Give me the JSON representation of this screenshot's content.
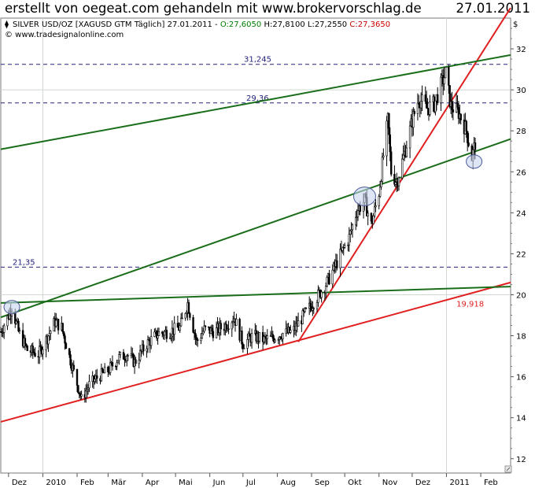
{
  "header": {
    "banner": "erstellt von oegeat.com gehandeln mit www.brokervorschlag.de",
    "date": "27.01.2011",
    "symbol": "SILVER USD/OZ [XAGUSD GTM  Täglich] 27.01.2011 - ",
    "open": "O:27,6050",
    "high": "H:27,8100",
    "low": "L:27,2550",
    "close": "C:27,3650",
    "source": "© www.tradesignalonline.com",
    "currency": "$"
  },
  "colors": {
    "price": "#000000",
    "open": "#008000",
    "close": "#cc0000",
    "support": "#e02020",
    "channel": "#1a6e1a",
    "level": "#22227a",
    "grid": "#d0d8d0",
    "marker_fill": "#c8d4ee",
    "marker_stroke": "#4a5a9a"
  },
  "chart_data": {
    "type": "candlestick",
    "instrument": "SILVER USD/OZ",
    "ylim": [
      11.3,
      33.5
    ],
    "y_ticks": [
      12,
      14,
      16,
      18,
      20,
      22,
      24,
      26,
      28,
      30,
      32
    ],
    "x_range": [
      "2009-11-24",
      "2011-02-28"
    ],
    "x_ticks": [
      {
        "date": "2009-12-01",
        "label": "Dez"
      },
      {
        "date": "2010-01-01",
        "label": "2010"
      },
      {
        "date": "2010-02-01",
        "label": "Feb"
      },
      {
        "date": "2010-03-01",
        "label": "Mär"
      },
      {
        "date": "2010-04-01",
        "label": "Apr"
      },
      {
        "date": "2010-05-01",
        "label": "Mai"
      },
      {
        "date": "2010-06-01",
        "label": "Jun"
      },
      {
        "date": "2010-07-01",
        "label": "Jul"
      },
      {
        "date": "2010-08-01",
        "label": "Aug"
      },
      {
        "date": "2010-09-01",
        "label": "Sep"
      },
      {
        "date": "2010-10-01",
        "label": "Okt"
      },
      {
        "date": "2010-11-01",
        "label": "Nov"
      },
      {
        "date": "2010-12-01",
        "label": "Dez"
      },
      {
        "date": "2011-01-01",
        "label": "2011"
      },
      {
        "date": "2011-02-01",
        "label": "Feb"
      }
    ],
    "gridlines_at": [
      "2010-01-01",
      "2011-01-01"
    ],
    "gridline_y": [
      20,
      30
    ],
    "price_path": [
      [
        "2009-11-24",
        18.2
      ],
      [
        "2009-12-01",
        19.0
      ],
      [
        "2009-12-04",
        19.4
      ],
      [
        "2009-12-10",
        18.2
      ],
      [
        "2009-12-18",
        17.3
      ],
      [
        "2009-12-28",
        17.1
      ],
      [
        "2010-01-04",
        17.8
      ],
      [
        "2010-01-12",
        18.7
      ],
      [
        "2010-01-18",
        18.4
      ],
      [
        "2010-01-26",
        16.8
      ],
      [
        "2010-02-05",
        14.9
      ],
      [
        "2010-02-12",
        15.6
      ],
      [
        "2010-02-20",
        16.0
      ],
      [
        "2010-03-01",
        16.3
      ],
      [
        "2010-03-10",
        16.9
      ],
      [
        "2010-03-18",
        17.1
      ],
      [
        "2010-03-25",
        16.7
      ],
      [
        "2010-04-05",
        17.6
      ],
      [
        "2010-04-15",
        18.1
      ],
      [
        "2010-04-25",
        18.2
      ],
      [
        "2010-05-05",
        18.4
      ],
      [
        "2010-05-12",
        19.6
      ],
      [
        "2010-05-20",
        17.7
      ],
      [
        "2010-05-27",
        18.3
      ],
      [
        "2010-06-05",
        18.2
      ],
      [
        "2010-06-15",
        18.5
      ],
      [
        "2010-06-23",
        18.9
      ],
      [
        "2010-07-01",
        17.6
      ],
      [
        "2010-07-10",
        18.0
      ],
      [
        "2010-07-20",
        17.8
      ],
      [
        "2010-07-28",
        17.9
      ],
      [
        "2010-08-05",
        18.1
      ],
      [
        "2010-08-15",
        18.2
      ],
      [
        "2010-08-25",
        19.0
      ],
      [
        "2010-09-05",
        19.8
      ],
      [
        "2010-09-15",
        20.6
      ],
      [
        "2010-09-25",
        21.7
      ],
      [
        "2010-10-05",
        22.8
      ],
      [
        "2010-10-12",
        24.1
      ],
      [
        "2010-10-19",
        24.6
      ],
      [
        "2010-10-25",
        23.4
      ],
      [
        "2010-11-01",
        25.0
      ],
      [
        "2010-11-05",
        26.8
      ],
      [
        "2010-11-09",
        28.5
      ],
      [
        "2010-11-12",
        26.0
      ],
      [
        "2010-11-17",
        25.5
      ],
      [
        "2010-11-24",
        26.9
      ],
      [
        "2010-12-01",
        28.5
      ],
      [
        "2010-12-07",
        29.6
      ],
      [
        "2010-12-14",
        29.1
      ],
      [
        "2010-12-21",
        29.3
      ],
      [
        "2010-12-31",
        30.8
      ],
      [
        "2011-01-05",
        29.2
      ],
      [
        "2011-01-12",
        28.9
      ],
      [
        "2011-01-19",
        28.0
      ],
      [
        "2011-01-24",
        26.7
      ],
      [
        "2011-01-27",
        27.4
      ]
    ],
    "levels": [
      {
        "value": 31.245,
        "label": "31,245"
      },
      {
        "value": 29.36,
        "label": "29,36"
      },
      {
        "value": 21.35,
        "label": "21,35"
      }
    ],
    "trendlines": [
      {
        "kind": "support",
        "from": [
          "2009-11-24",
          13.8
        ],
        "to": [
          "2011-02-28",
          20.6
        ]
      },
      {
        "kind": "support",
        "from": [
          "2010-08-20",
          17.7
        ],
        "to": [
          "2011-02-28",
          34.0
        ]
      },
      {
        "kind": "channel",
        "from": [
          "2009-11-24",
          27.1
        ],
        "to": [
          "2011-02-28",
          31.7
        ]
      },
      {
        "kind": "channel",
        "from": [
          "2009-11-24",
          18.9
        ],
        "to": [
          "2011-02-28",
          27.6
        ]
      },
      {
        "kind": "channel",
        "from": [
          "2009-11-24",
          19.6
        ],
        "to": [
          "2011-02-28",
          20.4
        ]
      }
    ],
    "annotations": [
      {
        "kind": "value-label",
        "value": 19.918,
        "label": "19,918",
        "at_date": "2011-01-10"
      }
    ],
    "markers": [
      {
        "date": "2009-12-04",
        "value": 19.4
      },
      {
        "date": "2010-10-19",
        "value": 24.8
      },
      {
        "date": "2011-01-26",
        "value": 26.5
      }
    ]
  }
}
